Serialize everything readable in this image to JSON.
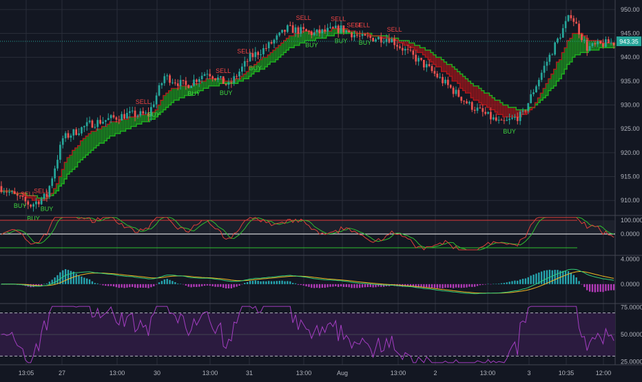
{
  "colors": {
    "background": "#131722",
    "grid": "#2a2e39",
    "up": "#26a69a",
    "down": "#ef5350",
    "band_green": "#1fb21f",
    "band_red": "#c0161a",
    "buy": "#3fd63f",
    "sell": "#ef4444",
    "price_label_bg": "#26a69a",
    "osc_fast": "#e0403a",
    "osc_slow": "#2fbf2f",
    "macd_line": "#33d17a",
    "signal_line": "#f2b823",
    "hist_up": "#26a6b0",
    "hist_down": "#b43ab9",
    "rsi": "#a43ec2",
    "rsi_fill": "#2b1b3f",
    "text": "#b2b5be"
  },
  "chart_data": [
    {
      "type": "candlestick",
      "name": "price",
      "y_ticks": [
        "950.00",
        "945.00",
        "940.00",
        "935.00",
        "930.00",
        "925.00",
        "920.00",
        "915.00",
        "910.00"
      ],
      "ylim": [
        907,
        952
      ],
      "last_price": "943.35",
      "x_labels": [
        "13:05",
        "27",
        "13:00",
        "30",
        "13:00",
        "31",
        "13:00",
        "Aug",
        "13:00",
        "2",
        "13:00",
        "3",
        "10:35",
        "12:00"
      ],
      "signals": [
        {
          "label": "BUY",
          "bar": 7
        },
        {
          "label": "BUY",
          "bar": 12
        },
        {
          "label": "BUY",
          "bar": 17
        },
        {
          "label": "SELL",
          "bar": 10
        },
        {
          "label": "SELL",
          "bar": 15
        },
        {
          "label": "BUY",
          "bar": 57
        },
        {
          "label": "SELL",
          "bar": 53
        },
        {
          "label": "BUY",
          "bar": 72
        },
        {
          "label": "SELL",
          "bar": 83
        },
        {
          "label": "BUY",
          "bar": 84
        },
        {
          "label": "BUY",
          "bar": 95
        },
        {
          "label": "SELL",
          "bar": 91
        },
        {
          "label": "BUY",
          "bar": 116
        },
        {
          "label": "SELL",
          "bar": 113
        },
        {
          "label": "BUY",
          "bar": 127
        },
        {
          "label": "SELL",
          "bar": 126
        },
        {
          "label": "SELL",
          "bar": 132
        },
        {
          "label": "BUY",
          "bar": 136
        },
        {
          "label": "SELL",
          "bar": 135
        },
        {
          "label": "SELL",
          "bar": 147
        },
        {
          "label": "BUY",
          "bar": 190
        }
      ]
    },
    {
      "type": "line",
      "name": "oscillator",
      "y_ticks": [
        "100.0000",
        "0.0000"
      ],
      "ylim": [
        -150,
        130
      ]
    },
    {
      "type": "line",
      "name": "macd",
      "y_ticks": [
        "4.0000",
        "0.0000"
      ],
      "ylim": [
        -3,
        4.5
      ]
    },
    {
      "type": "line",
      "name": "rsi",
      "y_ticks": [
        "75.0000",
        "50.0000",
        "25.0000"
      ],
      "ylim": [
        22,
        78
      ],
      "bands": [
        70,
        30
      ]
    }
  ]
}
